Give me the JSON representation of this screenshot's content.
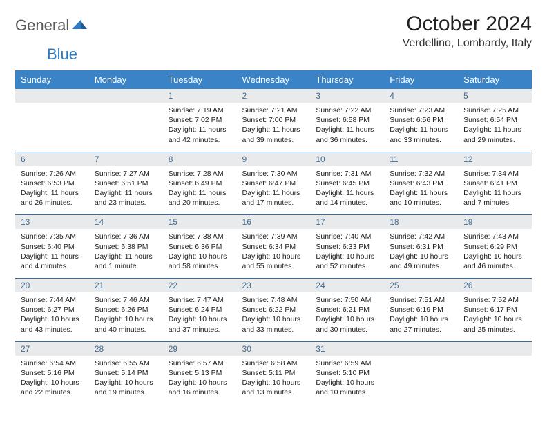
{
  "logo": {
    "word1": "General",
    "word2": "Blue"
  },
  "header": {
    "month": "October 2024",
    "location": "Verdellino, Lombardy, Italy"
  },
  "colors": {
    "header_bg": "#3b83c7",
    "header_text": "#ffffff",
    "daynum_bg": "#e9eaeb",
    "daynum_text": "#436a8f",
    "week_border": "#2f6ea8",
    "logo_gray": "#5a5a5a",
    "logo_blue": "#2f7bc2"
  },
  "day_labels": [
    "Sunday",
    "Monday",
    "Tuesday",
    "Wednesday",
    "Thursday",
    "Friday",
    "Saturday"
  ],
  "weeks": [
    [
      null,
      null,
      {
        "n": "1",
        "sr": "Sunrise: 7:19 AM",
        "ss": "Sunset: 7:02 PM",
        "dl": "Daylight: 11 hours and 42 minutes."
      },
      {
        "n": "2",
        "sr": "Sunrise: 7:21 AM",
        "ss": "Sunset: 7:00 PM",
        "dl": "Daylight: 11 hours and 39 minutes."
      },
      {
        "n": "3",
        "sr": "Sunrise: 7:22 AM",
        "ss": "Sunset: 6:58 PM",
        "dl": "Daylight: 11 hours and 36 minutes."
      },
      {
        "n": "4",
        "sr": "Sunrise: 7:23 AM",
        "ss": "Sunset: 6:56 PM",
        "dl": "Daylight: 11 hours and 33 minutes."
      },
      {
        "n": "5",
        "sr": "Sunrise: 7:25 AM",
        "ss": "Sunset: 6:54 PM",
        "dl": "Daylight: 11 hours and 29 minutes."
      }
    ],
    [
      {
        "n": "6",
        "sr": "Sunrise: 7:26 AM",
        "ss": "Sunset: 6:53 PM",
        "dl": "Daylight: 11 hours and 26 minutes."
      },
      {
        "n": "7",
        "sr": "Sunrise: 7:27 AM",
        "ss": "Sunset: 6:51 PM",
        "dl": "Daylight: 11 hours and 23 minutes."
      },
      {
        "n": "8",
        "sr": "Sunrise: 7:28 AM",
        "ss": "Sunset: 6:49 PM",
        "dl": "Daylight: 11 hours and 20 minutes."
      },
      {
        "n": "9",
        "sr": "Sunrise: 7:30 AM",
        "ss": "Sunset: 6:47 PM",
        "dl": "Daylight: 11 hours and 17 minutes."
      },
      {
        "n": "10",
        "sr": "Sunrise: 7:31 AM",
        "ss": "Sunset: 6:45 PM",
        "dl": "Daylight: 11 hours and 14 minutes."
      },
      {
        "n": "11",
        "sr": "Sunrise: 7:32 AM",
        "ss": "Sunset: 6:43 PM",
        "dl": "Daylight: 11 hours and 10 minutes."
      },
      {
        "n": "12",
        "sr": "Sunrise: 7:34 AM",
        "ss": "Sunset: 6:41 PM",
        "dl": "Daylight: 11 hours and 7 minutes."
      }
    ],
    [
      {
        "n": "13",
        "sr": "Sunrise: 7:35 AM",
        "ss": "Sunset: 6:40 PM",
        "dl": "Daylight: 11 hours and 4 minutes."
      },
      {
        "n": "14",
        "sr": "Sunrise: 7:36 AM",
        "ss": "Sunset: 6:38 PM",
        "dl": "Daylight: 11 hours and 1 minute."
      },
      {
        "n": "15",
        "sr": "Sunrise: 7:38 AM",
        "ss": "Sunset: 6:36 PM",
        "dl": "Daylight: 10 hours and 58 minutes."
      },
      {
        "n": "16",
        "sr": "Sunrise: 7:39 AM",
        "ss": "Sunset: 6:34 PM",
        "dl": "Daylight: 10 hours and 55 minutes."
      },
      {
        "n": "17",
        "sr": "Sunrise: 7:40 AM",
        "ss": "Sunset: 6:33 PM",
        "dl": "Daylight: 10 hours and 52 minutes."
      },
      {
        "n": "18",
        "sr": "Sunrise: 7:42 AM",
        "ss": "Sunset: 6:31 PM",
        "dl": "Daylight: 10 hours and 49 minutes."
      },
      {
        "n": "19",
        "sr": "Sunrise: 7:43 AM",
        "ss": "Sunset: 6:29 PM",
        "dl": "Daylight: 10 hours and 46 minutes."
      }
    ],
    [
      {
        "n": "20",
        "sr": "Sunrise: 7:44 AM",
        "ss": "Sunset: 6:27 PM",
        "dl": "Daylight: 10 hours and 43 minutes."
      },
      {
        "n": "21",
        "sr": "Sunrise: 7:46 AM",
        "ss": "Sunset: 6:26 PM",
        "dl": "Daylight: 10 hours and 40 minutes."
      },
      {
        "n": "22",
        "sr": "Sunrise: 7:47 AM",
        "ss": "Sunset: 6:24 PM",
        "dl": "Daylight: 10 hours and 37 minutes."
      },
      {
        "n": "23",
        "sr": "Sunrise: 7:48 AM",
        "ss": "Sunset: 6:22 PM",
        "dl": "Daylight: 10 hours and 33 minutes."
      },
      {
        "n": "24",
        "sr": "Sunrise: 7:50 AM",
        "ss": "Sunset: 6:21 PM",
        "dl": "Daylight: 10 hours and 30 minutes."
      },
      {
        "n": "25",
        "sr": "Sunrise: 7:51 AM",
        "ss": "Sunset: 6:19 PM",
        "dl": "Daylight: 10 hours and 27 minutes."
      },
      {
        "n": "26",
        "sr": "Sunrise: 7:52 AM",
        "ss": "Sunset: 6:17 PM",
        "dl": "Daylight: 10 hours and 25 minutes."
      }
    ],
    [
      {
        "n": "27",
        "sr": "Sunrise: 6:54 AM",
        "ss": "Sunset: 5:16 PM",
        "dl": "Daylight: 10 hours and 22 minutes."
      },
      {
        "n": "28",
        "sr": "Sunrise: 6:55 AM",
        "ss": "Sunset: 5:14 PM",
        "dl": "Daylight: 10 hours and 19 minutes."
      },
      {
        "n": "29",
        "sr": "Sunrise: 6:57 AM",
        "ss": "Sunset: 5:13 PM",
        "dl": "Daylight: 10 hours and 16 minutes."
      },
      {
        "n": "30",
        "sr": "Sunrise: 6:58 AM",
        "ss": "Sunset: 5:11 PM",
        "dl": "Daylight: 10 hours and 13 minutes."
      },
      {
        "n": "31",
        "sr": "Sunrise: 6:59 AM",
        "ss": "Sunset: 5:10 PM",
        "dl": "Daylight: 10 hours and 10 minutes."
      },
      null,
      null
    ]
  ]
}
